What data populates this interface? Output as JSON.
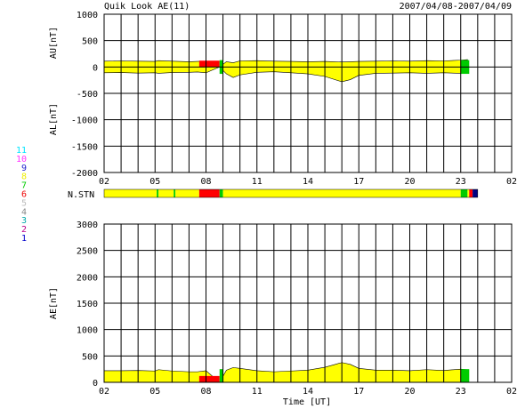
{
  "header": {
    "title": "Quik Look AE(11)",
    "date_range": "2007/04/08-2007/04/09"
  },
  "legend_station_numbers": [
    {
      "label": "11",
      "color": "#00e5ff"
    },
    {
      "label": "10",
      "color": "#ff33ff"
    },
    {
      "label": "9",
      "color": "#2222cc"
    },
    {
      "label": "8",
      "color": "#eeee00"
    },
    {
      "label": "7",
      "color": "#00cc00"
    },
    {
      "label": "6",
      "color": "#ee0000"
    },
    {
      "label": "5",
      "color": "#bbbbbb"
    },
    {
      "label": "4",
      "color": "#888888"
    },
    {
      "label": "3",
      "color": "#00aaaa"
    },
    {
      "label": "2",
      "color": "#bb0088"
    },
    {
      "label": "1",
      "color": "#0000cc"
    }
  ],
  "colors": {
    "fill": "#ffff00",
    "station_low": "#ff0000",
    "station_green": "#00cc00",
    "station_dark": "#000080",
    "grid": "#000000"
  },
  "chart_data": [
    {
      "type": "area",
      "id": "au_al",
      "ylabel_top": "AU[nT]",
      "ylabel_bottom": "AL[nT]",
      "ylim": [
        -2000,
        1000
      ],
      "yticks": [
        1000,
        500,
        0,
        -500,
        -1000,
        -1500,
        -2000
      ],
      "xlim_hours": [
        2,
        26
      ],
      "xtick_labels": [
        "02",
        "05",
        "08",
        "11",
        "14",
        "17",
        "20",
        "23",
        "02"
      ],
      "x_hours": [
        2,
        3,
        4,
        5,
        5.2,
        6,
        7,
        7.5,
        8,
        8.8,
        9.2,
        9.6,
        10,
        11,
        12,
        13,
        14,
        15,
        15.5,
        16,
        16.5,
        17,
        18,
        19,
        20,
        21,
        22,
        23,
        23.4
      ],
      "series": [
        {
          "values_au": [
            110,
            115,
            110,
            105,
            120,
            110,
            100,
            105,
            110,
            0,
            100,
            80,
            115,
            120,
            110,
            105,
            100,
            105,
            100,
            95,
            100,
            105,
            110,
            115,
            110,
            120,
            115,
            130,
            140
          ]
        },
        {
          "values_al": [
            -110,
            -105,
            -115,
            -110,
            -120,
            -105,
            -100,
            -95,
            -110,
            0,
            -130,
            -200,
            -150,
            -100,
            -90,
            -110,
            -130,
            -180,
            -230,
            -280,
            -240,
            -160,
            -120,
            -115,
            -110,
            -120,
            -110,
            -120,
            -100
          ]
        }
      ]
    },
    {
      "type": "area",
      "id": "ae",
      "ylabel": "AE[nT]",
      "ylim": [
        0,
        3000
      ],
      "yticks": [
        3000,
        2500,
        2000,
        1500,
        1000,
        500,
        0
      ],
      "xlim_hours": [
        2,
        26
      ],
      "xtick_labels": [
        "02",
        "05",
        "08",
        "11",
        "14",
        "17",
        "20",
        "23",
        "02"
      ],
      "xlabel": "Time [UT]",
      "x_hours": [
        2,
        3,
        4,
        5,
        5.2,
        6,
        7,
        7.5,
        8,
        8.8,
        9.2,
        9.6,
        10,
        11,
        12,
        13,
        14,
        15,
        15.5,
        16,
        16.5,
        17,
        18,
        19,
        20,
        21,
        22,
        23,
        23.4
      ],
      "series": [
        {
          "name": "AE",
          "values": [
            220,
            220,
            225,
            215,
            240,
            215,
            200,
            200,
            220,
            0,
            230,
            280,
            265,
            220,
            200,
            215,
            230,
            285,
            330,
            375,
            340,
            265,
            230,
            230,
            220,
            240,
            225,
            250,
            240
          ]
        }
      ]
    }
  ],
  "station_bar": {
    "label": "N.STN",
    "segments": [
      {
        "from": 2,
        "to": 5.1,
        "color": "#ffff00"
      },
      {
        "from": 5.1,
        "to": 5.2,
        "color": "#00cc00"
      },
      {
        "from": 5.2,
        "to": 6.1,
        "color": "#ffff00"
      },
      {
        "from": 6.1,
        "to": 6.2,
        "color": "#00cc00"
      },
      {
        "from": 6.2,
        "to": 7.6,
        "color": "#ffff00"
      },
      {
        "from": 7.6,
        "to": 8.8,
        "color": "#ff0000"
      },
      {
        "from": 8.8,
        "to": 9.0,
        "color": "#00cc00"
      },
      {
        "from": 9.0,
        "to": 23.0,
        "color": "#ffff00"
      },
      {
        "from": 23.0,
        "to": 23.4,
        "color": "#00cc00"
      },
      {
        "from": 23.4,
        "to": 23.5,
        "color": "#ffff00"
      },
      {
        "from": 23.5,
        "to": 23.7,
        "color": "#ff0000"
      },
      {
        "from": 23.7,
        "to": 24.0,
        "color": "#000080"
      }
    ]
  },
  "red_gaps": [
    {
      "from": 7.6,
      "to": 8.8
    }
  ],
  "green_gaps": [
    {
      "from": 8.8,
      "to": 9.0
    },
    {
      "from": 23.0,
      "to": 23.5
    }
  ]
}
